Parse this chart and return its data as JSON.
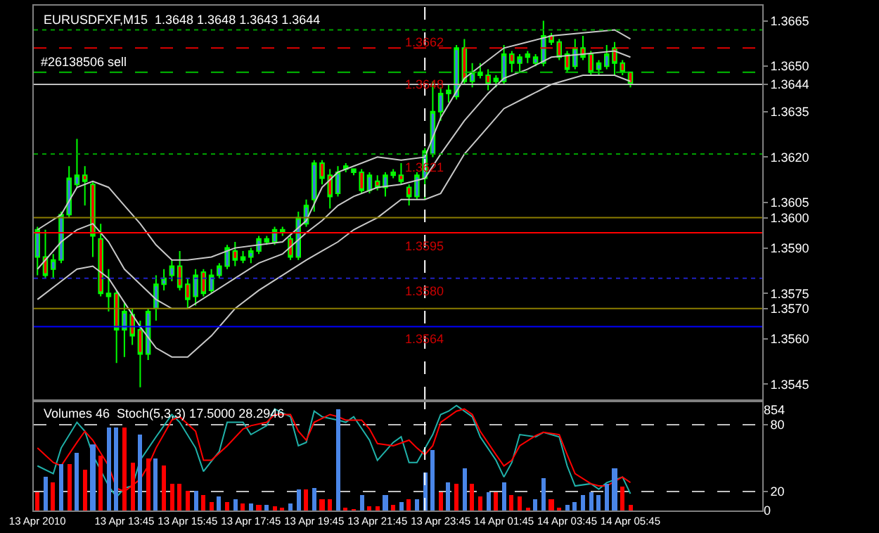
{
  "chart_data": [
    {
      "type": "candlestick",
      "title": "EURUSDFXF,M15  1.3648 1.3648 1.3643 1.3644",
      "x": [
        "2010-04-13T11:00",
        "2010-04-13T11:15",
        "2010-04-13T11:30",
        "2010-04-13T11:45",
        "2010-04-13T12:00",
        "2010-04-13T12:15",
        "2010-04-13T12:30",
        "2010-04-13T12:45",
        "2010-04-13T13:00",
        "2010-04-13T13:15",
        "2010-04-13T13:30",
        "2010-04-13T13:45",
        "2010-04-13T14:00",
        "2010-04-13T14:15",
        "2010-04-13T14:30",
        "2010-04-13T14:45",
        "2010-04-13T15:00",
        "2010-04-13T15:15",
        "2010-04-13T15:30",
        "2010-04-13T15:45",
        "2010-04-13T16:00",
        "2010-04-13T16:15",
        "2010-04-13T16:30",
        "2010-04-13T16:45",
        "2010-04-13T17:00",
        "2010-04-13T17:15",
        "2010-04-13T17:30",
        "2010-04-13T17:45",
        "2010-04-13T18:00",
        "2010-04-13T18:15",
        "2010-04-13T18:30",
        "2010-04-13T18:45",
        "2010-04-13T19:00",
        "2010-04-13T19:15",
        "2010-04-13T19:30",
        "2010-04-13T19:45",
        "2010-04-13T20:00",
        "2010-04-13T20:15",
        "2010-04-13T20:30",
        "2010-04-13T20:45",
        "2010-04-13T21:00",
        "2010-04-13T21:15",
        "2010-04-13T21:30",
        "2010-04-13T21:45",
        "2010-04-13T22:00",
        "2010-04-13T22:15",
        "2010-04-13T22:30",
        "2010-04-13T22:45",
        "2010-04-13T23:00",
        "2010-04-13T23:15",
        "2010-04-13T23:30",
        "2010-04-13T23:45",
        "2010-04-14T00:00",
        "2010-04-14T00:15",
        "2010-04-14T00:30",
        "2010-04-14T00:45",
        "2010-04-14T01:00",
        "2010-04-14T01:15",
        "2010-04-14T01:30",
        "2010-04-14T01:45",
        "2010-04-14T02:00",
        "2010-04-14T02:15",
        "2010-04-14T02:30",
        "2010-04-14T02:45",
        "2010-04-14T03:00",
        "2010-04-14T03:15",
        "2010-04-14T03:30",
        "2010-04-14T03:45",
        "2010-04-14T04:00",
        "2010-04-14T04:15",
        "2010-04-14T04:30",
        "2010-04-14T04:45",
        "2010-04-14T05:00",
        "2010-04-14T05:15",
        "2010-04-14T05:30",
        "2010-04-14T05:45"
      ],
      "ohlc": [
        [
          1.3587,
          1.3597,
          1.3581,
          1.3596
        ],
        [
          1.3587,
          1.3596,
          1.358,
          1.3581
        ],
        [
          1.3583,
          1.3588,
          1.358,
          1.3586
        ],
        [
          1.3586,
          1.3602,
          1.3585,
          1.3601
        ],
        [
          1.3601,
          1.3617,
          1.36,
          1.3613
        ],
        [
          1.3611,
          1.3626,
          1.361,
          1.3614
        ],
        [
          1.3614,
          1.3617,
          1.3604,
          1.3612
        ],
        [
          1.3611,
          1.3612,
          1.3587,
          1.3594
        ],
        [
          1.3593,
          1.3598,
          1.3574,
          1.3575
        ],
        [
          1.3575,
          1.3583,
          1.3569,
          1.3574
        ],
        [
          1.3575,
          1.3576,
          1.3552,
          1.3563
        ],
        [
          1.3563,
          1.3572,
          1.3554,
          1.3569
        ],
        [
          1.3568,
          1.357,
          1.3558,
          1.3561
        ],
        [
          1.3563,
          1.3566,
          1.3544,
          1.3555
        ],
        [
          1.3555,
          1.357,
          1.3553,
          1.3569
        ],
        [
          1.357,
          1.3581,
          1.3566,
          1.3578
        ],
        [
          1.3578,
          1.3583,
          1.3576,
          1.358
        ],
        [
          1.3581,
          1.3586,
          1.3579,
          1.3584
        ],
        [
          1.3584,
          1.3589,
          1.3576,
          1.3577
        ],
        [
          1.3578,
          1.358,
          1.357,
          1.3573
        ],
        [
          1.3574,
          1.3583,
          1.3571,
          1.3581
        ],
        [
          1.3582,
          1.3583,
          1.3574,
          1.3575
        ],
        [
          1.3576,
          1.3583,
          1.3575,
          1.3581
        ],
        [
          1.3581,
          1.3585,
          1.358,
          1.3584
        ],
        [
          1.3584,
          1.3591,
          1.3583,
          1.359
        ],
        [
          1.3589,
          1.3592,
          1.3584,
          1.3586
        ],
        [
          1.3586,
          1.3589,
          1.3585,
          1.3587
        ],
        [
          1.3587,
          1.359,
          1.3585,
          1.3589
        ],
        [
          1.3589,
          1.3594,
          1.3588,
          1.3593
        ],
        [
          1.3592,
          1.3594,
          1.3591,
          1.3593
        ],
        [
          1.3592,
          1.3597,
          1.3591,
          1.3596
        ],
        [
          1.3596,
          1.3597,
          1.3594,
          1.3595
        ],
        [
          1.3593,
          1.3594,
          1.3586,
          1.3587
        ],
        [
          1.3587,
          1.3602,
          1.3586,
          1.36
        ],
        [
          1.3598,
          1.3606,
          1.3597,
          1.3604
        ],
        [
          1.3606,
          1.3619,
          1.3602,
          1.3618
        ],
        [
          1.3618,
          1.3619,
          1.3611,
          1.3613
        ],
        [
          1.3614,
          1.3616,
          1.3603,
          1.3607
        ],
        [
          1.3608,
          1.3617,
          1.3607,
          1.3615
        ],
        [
          1.3616,
          1.3618,
          1.3615,
          1.3617
        ],
        [
          1.3615,
          1.3616,
          1.3614,
          1.3616
        ],
        [
          1.3615,
          1.3616,
          1.3608,
          1.3609
        ],
        [
          1.3609,
          1.3615,
          1.3608,
          1.3614
        ],
        [
          1.3612,
          1.3614,
          1.3609,
          1.361
        ],
        [
          1.361,
          1.3615,
          1.3607,
          1.3614
        ],
        [
          1.3615,
          1.3616,
          1.3613,
          1.3614
        ],
        [
          1.3614,
          1.3618,
          1.3611,
          1.3612
        ],
        [
          1.361,
          1.3611,
          1.3604,
          1.3607
        ],
        [
          1.3607,
          1.3615,
          1.3606,
          1.3614
        ],
        [
          1.3613,
          1.3623,
          1.3606,
          1.3622
        ],
        [
          1.3621,
          1.3645,
          1.362,
          1.3635
        ],
        [
          1.3635,
          1.3643,
          1.3632,
          1.3641
        ],
        [
          1.3641,
          1.3644,
          1.3638,
          1.3642
        ],
        [
          1.364,
          1.3657,
          1.3639,
          1.3656
        ],
        [
          1.3656,
          1.3659,
          1.3644,
          1.3645
        ],
        [
          1.3645,
          1.3651,
          1.3643,
          1.3648
        ],
        [
          1.3647,
          1.3651,
          1.3646,
          1.3648
        ],
        [
          1.3647,
          1.3649,
          1.3642,
          1.3644
        ],
        [
          1.3645,
          1.3647,
          1.3643,
          1.3646
        ],
        [
          1.3645,
          1.3657,
          1.3644,
          1.3654
        ],
        [
          1.3654,
          1.3655,
          1.3648,
          1.3651
        ],
        [
          1.3651,
          1.3654,
          1.3648,
          1.3653
        ],
        [
          1.3654,
          1.3655,
          1.3651,
          1.3653
        ],
        [
          1.3651,
          1.3654,
          1.365,
          1.3653
        ],
        [
          1.3651,
          1.3665,
          1.365,
          1.366
        ],
        [
          1.366,
          1.3661,
          1.3657,
          1.3658
        ],
        [
          1.3658,
          1.3659,
          1.3652,
          1.3653
        ],
        [
          1.3654,
          1.3655,
          1.3648,
          1.3649
        ],
        [
          1.365,
          1.3659,
          1.3649,
          1.3656
        ],
        [
          1.3656,
          1.366,
          1.3652,
          1.3653
        ],
        [
          1.3654,
          1.3655,
          1.3647,
          1.3648
        ],
        [
          1.3649,
          1.3652,
          1.3647,
          1.3651
        ],
        [
          1.365,
          1.3657,
          1.3649,
          1.3654
        ],
        [
          1.3656,
          1.3658,
          1.3647,
          1.3651
        ],
        [
          1.3651,
          1.3652,
          1.3647,
          1.3648
        ],
        [
          1.3648,
          1.3648,
          1.3643,
          1.3644
        ]
      ],
      "series": [
        {
          "type": "line",
          "color": "#c8c8c8",
          "x": [
            "2010-04-13T11:00",
            "2010-04-13T11:45",
            "2010-04-13T12:15",
            "2010-04-13T12:45",
            "2010-04-13T13:15",
            "2010-04-13T13:45",
            "2010-04-13T14:15",
            "2010-04-13T14:45",
            "2010-04-13T15:15",
            "2010-04-13T15:45",
            "2010-04-13T16:30",
            "2010-04-13T17:15",
            "2010-04-13T18:00",
            "2010-04-13T18:45",
            "2010-04-13T19:30",
            "2010-04-13T20:00",
            "2010-04-13T20:30",
            "2010-04-13T21:00",
            "2010-04-13T21:45",
            "2010-04-13T22:30",
            "2010-04-13T23:15",
            "2010-04-13T23:45",
            "2010-04-14T00:30",
            "2010-04-14T01:15",
            "2010-04-14T01:45",
            "2010-04-14T02:30",
            "2010-04-14T03:15",
            "2010-04-14T04:15",
            "2010-04-14T05:15",
            "2010-04-14T05:45"
          ],
          "values": [
            1.3596,
            1.3601,
            1.361,
            1.3612,
            1.361,
            1.3604,
            1.3598,
            1.3591,
            1.3586,
            1.3586,
            1.3587,
            1.359,
            1.3591,
            1.3592,
            1.3599,
            1.361,
            1.3615,
            1.3617,
            1.362,
            1.3619,
            1.362,
            1.3633,
            1.3646,
            1.3652,
            1.3656,
            1.3658,
            1.366,
            1.3661,
            1.3662,
            1.3659
          ]
        },
        {
          "type": "line",
          "color": "#c8c8c8",
          "x": [
            "2010-04-13T11:00",
            "2010-04-13T11:45",
            "2010-04-13T12:15",
            "2010-04-13T12:45",
            "2010-04-13T13:15",
            "2010-04-13T13:45",
            "2010-04-13T14:15",
            "2010-04-13T14:45",
            "2010-04-13T15:15",
            "2010-04-13T15:45",
            "2010-04-13T16:30",
            "2010-04-13T17:15",
            "2010-04-13T18:00",
            "2010-04-13T18:45",
            "2010-04-13T19:30",
            "2010-04-13T20:00",
            "2010-04-13T20:30",
            "2010-04-13T21:00",
            "2010-04-13T21:45",
            "2010-04-13T22:30",
            "2010-04-13T23:15",
            "2010-04-13T23:45",
            "2010-04-14T00:30",
            "2010-04-14T01:15",
            "2010-04-14T01:45",
            "2010-04-14T02:30",
            "2010-04-14T03:15",
            "2010-04-14T04:15",
            "2010-04-14T05:15",
            "2010-04-14T05:45"
          ],
          "values": [
            1.3583,
            1.3592,
            1.3596,
            1.3598,
            1.3592,
            1.3583,
            1.3578,
            1.3573,
            1.357,
            1.357,
            1.3575,
            1.358,
            1.3585,
            1.3588,
            1.3595,
            1.3599,
            1.3604,
            1.3607,
            1.361,
            1.3611,
            1.3613,
            1.3621,
            1.3632,
            1.3641,
            1.3646,
            1.3649,
            1.3653,
            1.3654,
            1.3655,
            1.3653
          ]
        },
        {
          "type": "line",
          "color": "#c8c8c8",
          "x": [
            "2010-04-13T11:00",
            "2010-04-13T11:45",
            "2010-04-13T12:15",
            "2010-04-13T12:45",
            "2010-04-13T13:15",
            "2010-04-13T13:45",
            "2010-04-13T14:15",
            "2010-04-13T14:45",
            "2010-04-13T15:15",
            "2010-04-13T15:45",
            "2010-04-13T16:30",
            "2010-04-13T17:15",
            "2010-04-13T18:00",
            "2010-04-13T18:45",
            "2010-04-13T19:30",
            "2010-04-13T20:00",
            "2010-04-13T20:30",
            "2010-04-13T21:00",
            "2010-04-13T21:45",
            "2010-04-13T22:30",
            "2010-04-13T23:15",
            "2010-04-13T23:45",
            "2010-04-14T00:30",
            "2010-04-14T01:15",
            "2010-04-14T01:45",
            "2010-04-14T02:30",
            "2010-04-14T03:15",
            "2010-04-14T04:15",
            "2010-04-14T05:15",
            "2010-04-14T05:45"
          ],
          "values": [
            1.3573,
            1.3579,
            1.3583,
            1.3584,
            1.358,
            1.3572,
            1.3564,
            1.3557,
            1.3554,
            1.3554,
            1.3561,
            1.357,
            1.3576,
            1.3581,
            1.3586,
            1.3589,
            1.3592,
            1.3596,
            1.36,
            1.3606,
            1.3606,
            1.3608,
            1.3621,
            1.363,
            1.3636,
            1.364,
            1.3644,
            1.3647,
            1.3647,
            1.3645
          ]
        }
      ],
      "xlim": [
        "2010-04-13T10:53",
        "2010-04-14T09:55"
      ],
      "ylim": [
        1.354,
        1.367
      ],
      "yticks": [
        1.3665,
        {
          "value": 1.365,
          "label": "1.3650"
        },
        {
          "value": 1.3644,
          "label": "1.3644"
        },
        1.3635,
        {
          "value": 1.362,
          "label": "1.3620"
        },
        1.3605,
        {
          "value": 1.36,
          "label": "1.3600"
        },
        {
          "value": 1.359,
          "label": "1.3590"
        },
        1.3575,
        {
          "value": 1.357,
          "label": "1.3570"
        },
        {
          "value": 1.356,
          "label": "1.3560"
        },
        1.3545
      ],
      "tick_labels": "y",
      "ref_lines": [
        {
          "axis": "y",
          "value": 1.3662,
          "label": "1.3662",
          "color": "#00a000",
          "line_style": "dotted"
        },
        {
          "axis": "y",
          "value": 1.3656,
          "color": "#e00000",
          "line_style": "dashed"
        },
        {
          "axis": "y",
          "value": 1.3648,
          "label": "1.3648",
          "color": "#00c000",
          "line_style": "dashed"
        },
        {
          "axis": "y",
          "value": 1.3644,
          "color": "#c0c0c0",
          "line_style": "solid"
        },
        {
          "axis": "y",
          "value": 1.3621,
          "label": "1.3621",
          "color": "#00a000",
          "line_style": "dotted"
        },
        {
          "axis": "y",
          "value": 1.36,
          "color": "#8b7d00",
          "line_style": "solid"
        },
        {
          "axis": "y",
          "value": 1.3595,
          "label": "1.3595",
          "color": "#ff0000",
          "line_style": "solid"
        },
        {
          "axis": "y",
          "value": 1.358,
          "label": "1.3580",
          "color": "#2020c0",
          "line_style": "dotted"
        },
        {
          "axis": "y",
          "value": 1.357,
          "color": "#8b7d00",
          "line_style": "solid"
        },
        {
          "axis": "y",
          "value": 1.3564,
          "label": "1.3564",
          "color": "#0000ff",
          "line_style": "solid"
        },
        {
          "axis": "x",
          "value": "2010-04-13T23:15",
          "color": "#ffffff",
          "line_style": "dashed"
        }
      ],
      "annotations": [
        {
          "text": "#26138506 sell",
          "x": "2010-04-13T11:00",
          "y": 1.3648
        }
      ]
    },
    {
      "type": "bar",
      "title": "Volumes 46  Stoch(5,3,3) 17.5000 28.2946",
      "x": [
        "2010-04-13T11:00",
        "2010-04-13T11:15",
        "2010-04-13T11:30",
        "2010-04-13T11:45",
        "2010-04-13T12:00",
        "2010-04-13T12:15",
        "2010-04-13T12:30",
        "2010-04-13T12:45",
        "2010-04-13T13:00",
        "2010-04-13T13:15",
        "2010-04-13T13:30",
        "2010-04-13T13:45",
        "2010-04-13T14:00",
        "2010-04-13T14:15",
        "2010-04-13T14:30",
        "2010-04-13T14:45",
        "2010-04-13T15:00",
        "2010-04-13T15:15",
        "2010-04-13T15:30",
        "2010-04-13T15:45",
        "2010-04-13T16:00",
        "2010-04-13T16:15",
        "2010-04-13T16:30",
        "2010-04-13T16:45",
        "2010-04-13T17:00",
        "2010-04-13T17:15",
        "2010-04-13T17:30",
        "2010-04-13T17:45",
        "2010-04-13T18:00",
        "2010-04-13T18:15",
        "2010-04-13T18:30",
        "2010-04-13T18:45",
        "2010-04-13T19:00",
        "2010-04-13T19:15",
        "2010-04-13T19:30",
        "2010-04-13T19:45",
        "2010-04-13T20:00",
        "2010-04-13T20:15",
        "2010-04-13T20:30",
        "2010-04-13T20:45",
        "2010-04-13T21:00",
        "2010-04-13T21:15",
        "2010-04-13T21:30",
        "2010-04-13T21:45",
        "2010-04-13T22:00",
        "2010-04-13T22:15",
        "2010-04-13T22:30",
        "2010-04-13T22:45",
        "2010-04-13T23:00",
        "2010-04-13T23:15",
        "2010-04-13T23:30",
        "2010-04-13T23:45",
        "2010-04-14T00:00",
        "2010-04-14T00:15",
        "2010-04-14T00:30",
        "2010-04-14T00:45",
        "2010-04-14T01:00",
        "2010-04-14T01:15",
        "2010-04-14T01:30",
        "2010-04-14T01:45",
        "2010-04-14T02:00",
        "2010-04-14T02:15",
        "2010-04-14T02:30",
        "2010-04-14T02:45",
        "2010-04-14T03:00",
        "2010-04-14T03:15",
        "2010-04-14T03:30",
        "2010-04-14T03:45",
        "2010-04-14T04:00",
        "2010-04-14T04:15",
        "2010-04-14T04:30",
        "2010-04-14T04:45",
        "2010-04-14T05:00",
        "2010-04-14T05:15",
        "2010-04-14T05:30",
        "2010-04-14T05:45"
      ],
      "series": [
        {
          "axis": "y2",
          "values": [
            150,
            280,
            240,
            390,
            390,
            490,
            340,
            560,
            460,
            700,
            700,
            700,
            410,
            640,
            440,
            440,
            380,
            230,
            230,
            170,
            170,
            130,
            70,
            120,
            70,
            100,
            60,
            60,
            50,
            50,
            40,
            20,
            60,
            180,
            180,
            190,
            100,
            100,
            854,
            20,
            10,
            130,
            30,
            30,
            130,
            50,
            70,
            100,
            100,
            320,
            510,
            160,
            240,
            220,
            360,
            230,
            120,
            160,
            150,
            240,
            130,
            120,
            20,
            90,
            270,
            90,
            20,
            50,
            70,
            130,
            150,
            130,
            230,
            360,
            200,
            46
          ],
          "colors": [
            "#ff0000",
            "#4a86e8",
            "#ff0000",
            "#4a86e8",
            "#ff0000",
            "#4a86e8",
            "#ff0000",
            "#4a86e8",
            "#ff0000",
            "#4a86e8",
            "#4a86e8",
            "#ff0000",
            "#ff0000",
            "#4a86e8",
            "#ff0000",
            "#4a86e8",
            "#ff0000",
            "#ff0000",
            "#ff0000",
            "#ff0000",
            "#4a86e8",
            "#ff0000",
            "#ff0000",
            "#4a86e8",
            "#ff0000",
            "#4a86e8",
            "#ff0000",
            "#4a86e8",
            "#ff0000",
            "#4a86e8",
            "#ff0000",
            "#ff0000",
            "#4a86e8",
            "#4a86e8",
            "#ff0000",
            "#4a86e8",
            "#ff0000",
            "#ff0000",
            "#4a86e8",
            "#ff0000",
            "#ff0000",
            "#4a86e8",
            "#ff0000",
            "#ff0000",
            "#4a86e8",
            "#ff0000",
            "#4a86e8",
            "#ff0000",
            "#4a86e8",
            "#4a86e8",
            "#4a86e8",
            "#ff0000",
            "#4a86e8",
            "#ff0000",
            "#4a86e8",
            "#ff0000",
            "#ff0000",
            "#4a86e8",
            "#ff0000",
            "#4a86e8",
            "#ff0000",
            "#ff0000",
            "#ff0000",
            "#4a86e8",
            "#4a86e8",
            "#ff0000",
            "#ff0000",
            "#4a86e8",
            "#4a86e8",
            "#4a86e8",
            "#4a86e8",
            "#4a86e8",
            "#4a86e8",
            "#4a86e8",
            "#ff0000",
            "#ff0000"
          ]
        },
        {
          "type": "line",
          "color": "#20b2aa",
          "x": [
            "2010-04-13T11:00",
            "2010-04-13T11:30",
            "2010-04-13T11:45",
            "2010-04-13T12:15",
            "2010-04-13T12:30",
            "2010-04-13T12:45",
            "2010-04-13T13:15",
            "2010-04-13T13:30",
            "2010-04-13T13:45",
            "2010-04-13T14:00",
            "2010-04-13T14:15",
            "2010-04-13T14:45",
            "2010-04-13T15:15",
            "2010-04-13T15:30",
            "2010-04-13T16:00",
            "2010-04-13T16:15",
            "2010-04-13T16:45",
            "2010-04-13T17:00",
            "2010-04-13T17:30",
            "2010-04-13T17:45",
            "2010-04-13T18:15",
            "2010-04-13T18:30",
            "2010-04-13T19:00",
            "2010-04-13T19:15",
            "2010-04-13T19:30",
            "2010-04-13T19:45",
            "2010-04-13T20:00",
            "2010-04-13T20:30",
            "2010-04-13T20:45",
            "2010-04-13T21:00",
            "2010-04-13T21:30",
            "2010-04-13T21:45",
            "2010-04-13T22:15",
            "2010-04-13T22:30",
            "2010-04-13T22:45",
            "2010-04-13T23:00",
            "2010-04-13T23:30",
            "2010-04-13T23:45",
            "2010-04-14T00:00",
            "2010-04-14T00:15",
            "2010-04-14T00:45",
            "2010-04-14T01:00",
            "2010-04-14T01:30",
            "2010-04-14T01:45",
            "2010-04-14T02:00",
            "2010-04-14T02:15",
            "2010-04-14T02:45",
            "2010-04-14T03:00",
            "2010-04-14T03:30",
            "2010-04-14T03:45",
            "2010-04-14T04:00",
            "2010-04-14T04:30",
            "2010-04-14T04:45",
            "2010-04-14T05:00",
            "2010-04-14T05:30",
            "2010-04-14T05:45"
          ],
          "values": [
            43,
            36,
            59,
            82,
            74,
            53,
            25,
            15,
            23,
            25,
            48,
            69,
            89,
            82,
            59,
            38,
            56,
            82,
            82,
            71,
            79,
            94,
            87,
            61,
            64,
            92,
            87,
            84,
            82,
            87,
            66,
            48,
            64,
            69,
            46,
            46,
            71,
            89,
            92,
            97,
            87,
            69,
            48,
            33,
            46,
            71,
            69,
            73,
            69,
            43,
            25,
            27,
            22,
            28,
            33,
            18
          ]
        },
        {
          "type": "line",
          "color": "#ff0000",
          "x": [
            "2010-04-13T11:00",
            "2010-04-13T11:30",
            "2010-04-13T11:45",
            "2010-04-13T12:15",
            "2010-04-13T12:30",
            "2010-04-13T12:45",
            "2010-04-13T13:15",
            "2010-04-13T13:30",
            "2010-04-13T13:45",
            "2010-04-13T14:15",
            "2010-04-13T14:30",
            "2010-04-13T14:45",
            "2010-04-13T15:15",
            "2010-04-13T15:30",
            "2010-04-13T16:00",
            "2010-04-13T16:15",
            "2010-04-13T16:30",
            "2010-04-13T17:00",
            "2010-04-13T17:30",
            "2010-04-13T17:45",
            "2010-04-13T18:15",
            "2010-04-13T18:30",
            "2010-04-13T19:00",
            "2010-04-13T19:15",
            "2010-04-13T19:30",
            "2010-04-13T19:45",
            "2010-04-13T20:15",
            "2010-04-13T20:30",
            "2010-04-13T20:45",
            "2010-04-13T21:15",
            "2010-04-13T21:30",
            "2010-04-13T21:45",
            "2010-04-13T22:15",
            "2010-04-13T22:45",
            "2010-04-13T23:00",
            "2010-04-13T23:15",
            "2010-04-13T23:30",
            "2010-04-13T23:45",
            "2010-04-14T00:15",
            "2010-04-14T00:30",
            "2010-04-14T00:45",
            "2010-04-14T01:00",
            "2010-04-14T01:30",
            "2010-04-14T01:45",
            "2010-04-14T02:00",
            "2010-04-14T02:15",
            "2010-04-14T02:45",
            "2010-04-14T03:00",
            "2010-04-14T03:30",
            "2010-04-14T03:45",
            "2010-04-14T04:00",
            "2010-04-14T04:30",
            "2010-04-14T04:45",
            "2010-04-14T05:00",
            "2010-04-14T05:30",
            "2010-04-14T05:45"
          ],
          "values": [
            59,
            46,
            43,
            64,
            74,
            66,
            43,
            23,
            20,
            31,
            43,
            59,
            84,
            87,
            74,
            48,
            48,
            61,
            76,
            79,
            82,
            89,
            89,
            74,
            66,
            82,
            89,
            87,
            84,
            84,
            76,
            63,
            61,
            66,
            59,
            53,
            61,
            82,
            92,
            94,
            89,
            74,
            53,
            43,
            48,
            61,
            70,
            73,
            71,
            53,
            36,
            27,
            25,
            25,
            33,
            28
          ]
        }
      ],
      "xlim": [
        "2010-04-13T10:53",
        "2010-04-14T09:55"
      ],
      "xticks": [
        {
          "value": "2010-04-13T11:00",
          "label": "13 Apr 2010"
        },
        {
          "value": "2010-04-13T13:45",
          "label": "13 Apr 13:45"
        },
        {
          "value": "2010-04-13T15:45",
          "label": "13 Apr 15:45"
        },
        {
          "value": "2010-04-13T17:45",
          "label": "13 Apr 17:45"
        },
        {
          "value": "2010-04-13T19:45",
          "label": "13 Apr 19:45"
        },
        {
          "value": "2010-04-13T21:45",
          "label": "13 Apr 21:45"
        },
        {
          "value": "2010-04-13T23:45",
          "label": "13 Apr 23:45"
        },
        {
          "value": "2010-04-14T01:45",
          "label": "14 Apr 01:45"
        },
        {
          "value": "2010-04-14T03:45",
          "label": "14 Apr 03:45"
        },
        {
          "value": "2010-04-14T05:45",
          "label": "14 Apr 05:45"
        }
      ],
      "ylim": [
        3,
        100
      ],
      "yticks": [
        20,
        80
      ],
      "y2lim": [
        0,
        915
      ],
      "y2ticks": [
        0,
        854
      ],
      "grid": "y",
      "ref_lines": [
        {
          "axis": "x",
          "value": "2010-04-13T23:15",
          "color": "#ffffff",
          "line_style": "dashed"
        }
      ]
    }
  ]
}
